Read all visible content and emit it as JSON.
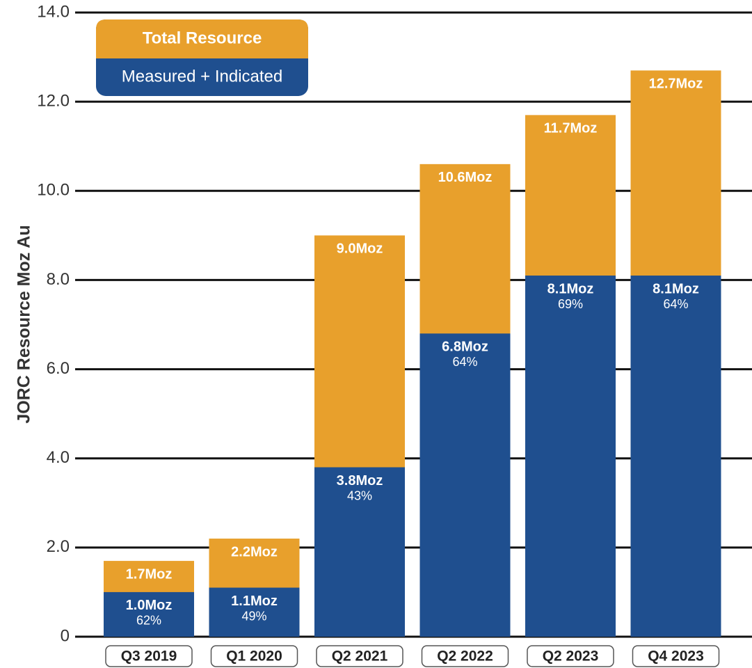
{
  "chart_data": {
    "type": "overlay-bar",
    "y_label": "JORC Resource Moz Au",
    "categories": [
      "Q3 2019",
      "Q1 2020",
      "Q2 2021",
      "Q2 2022",
      "Q2 2023",
      "Q4 2023"
    ],
    "series": [
      {
        "name": "Total Resource",
        "color": "#e8a02c",
        "values": [
          1.7,
          2.2,
          9.0,
          10.6,
          11.7,
          12.7
        ],
        "value_labels": [
          "1.7Moz",
          "2.2Moz",
          "9.0Moz",
          "10.6Moz",
          "11.7Moz",
          "12.7Moz"
        ]
      },
      {
        "name": "Measured + Indicated",
        "color": "#1f4f8f",
        "values": [
          1.0,
          1.1,
          3.8,
          6.8,
          8.1,
          8.1
        ],
        "value_labels": [
          "1.0Moz",
          "1.1Moz",
          "3.8Moz",
          "6.8Moz",
          "8.1Moz",
          "8.1Moz"
        ],
        "shares": [
          62,
          49,
          43,
          64,
          69,
          64
        ],
        "share_labels": [
          "62%",
          "49%",
          "43%",
          "64%",
          "69%",
          "64%"
        ]
      }
    ],
    "ylim": [
      0,
      14
    ],
    "yticks": [
      0,
      {
        "value": 2,
        "label": "2.0"
      },
      {
        "value": 4,
        "label": "4.0"
      },
      {
        "value": 6,
        "label": "6.0"
      },
      {
        "value": 8,
        "label": "8.0"
      },
      {
        "value": 10,
        "label": "10.0"
      },
      {
        "value": 12,
        "label": "12.0"
      },
      {
        "value": 14,
        "label": "14.0"
      }
    ],
    "grid": true
  }
}
